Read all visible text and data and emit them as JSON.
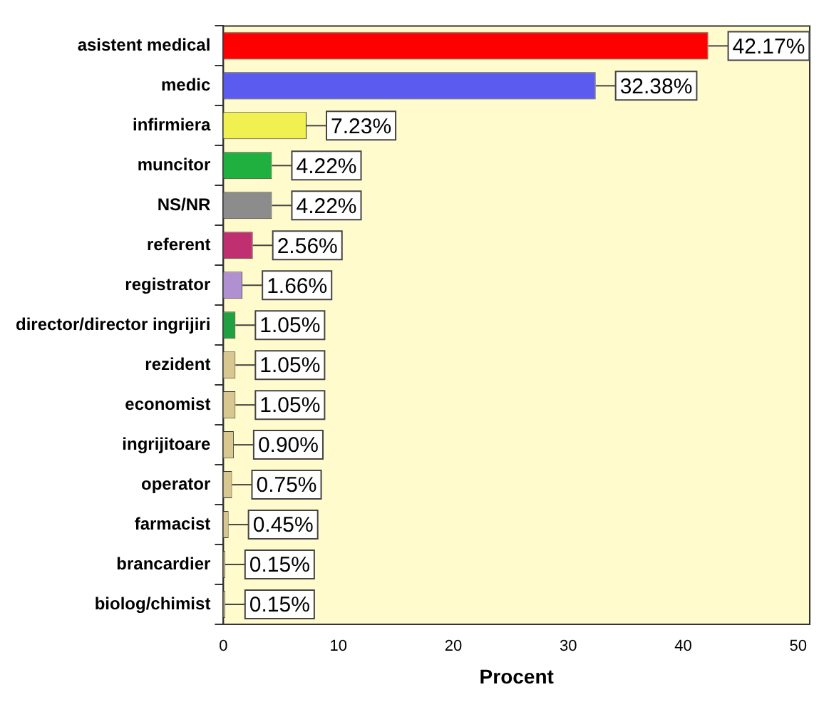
{
  "chart_data": {
    "type": "bar",
    "orientation": "horizontal",
    "xlabel": "Procent",
    "categories": [
      "asistent medical",
      "medic",
      "infirmiera",
      "muncitor",
      "NS/NR",
      "referent",
      "registrator",
      "director/director ingrijiri",
      "rezident",
      "economist",
      "ingrijitoare",
      "operator",
      "farmacist",
      "brancardier",
      "biolog/chimist"
    ],
    "values": [
      42.17,
      32.38,
      7.23,
      4.22,
      4.22,
      2.56,
      1.66,
      1.05,
      1.05,
      1.05,
      0.9,
      0.75,
      0.45,
      0.15,
      0.15
    ],
    "colors": [
      "#ff0000",
      "#5b5bef",
      "#f0f050",
      "#20b040",
      "#8c8c8c",
      "#c03070",
      "#b090d0",
      "#20a040",
      "#d8c890",
      "#d8c890",
      "#d8c890",
      "#d8c890",
      "#d8c890",
      "#d8c890",
      "#d8c890"
    ],
    "value_labels": [
      "42.17%",
      "32.38%",
      "7.23%",
      "4.22%",
      "4.22%",
      "2.56%",
      "1.66%",
      "1.05%",
      "1.05%",
      "1.05%",
      "0.90%",
      "0.75%",
      "0.45%",
      "0.15%",
      "0.15%"
    ],
    "xlim": [
      0,
      51
    ],
    "xticks": [
      0,
      10,
      20,
      30,
      40,
      50
    ],
    "grid": false,
    "legend": false
  }
}
